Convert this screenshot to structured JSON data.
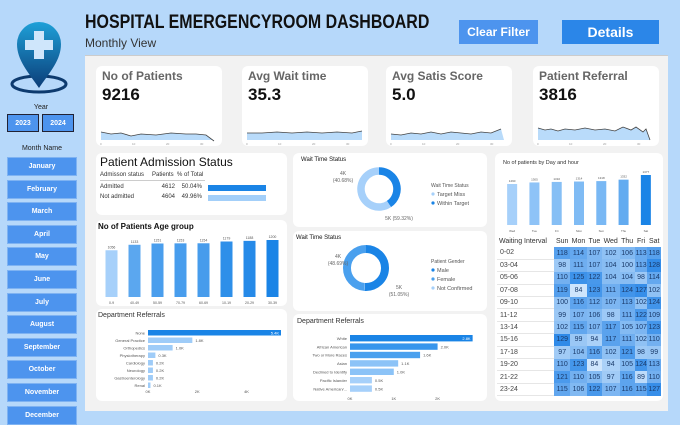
{
  "header": {
    "title": "HOSPITAL EMERGENCYROOM DASHBOARD",
    "subtitle": "Monthly View",
    "clear_filter": "Clear Filter",
    "details": "Details"
  },
  "sidebar": {
    "year_label": "Year",
    "years": [
      "2023",
      "2024"
    ],
    "month_label": "Month Name",
    "months": [
      "January",
      "February",
      "March",
      "April",
      "May",
      "June",
      "July",
      "August",
      "September",
      "October",
      "November",
      "December"
    ]
  },
  "kpis": [
    {
      "title": "No of Patients",
      "value": "9216"
    },
    {
      "title": "Avg Wait time",
      "value": "35.3"
    },
    {
      "title": "Avg Satis Score",
      "value": "5.0"
    },
    {
      "title": "Patient Referral",
      "value": "3816"
    }
  ],
  "admission": {
    "title": "Patient Admission Status",
    "headers": [
      "Admisson status",
      "Patients",
      "% of Total"
    ],
    "rows": [
      {
        "status": "Admitted",
        "patients": "4612",
        "pct": "50.04%",
        "fraction": 0.5004
      },
      {
        "status": "Not admitted",
        "patients": "4604",
        "pct": "49.96%",
        "fraction": 0.4996
      }
    ]
  },
  "colors": {
    "dark": "#1a84e6",
    "mid": "#4aa0ee",
    "light": "#a3cff9",
    "sidebar_btn": "#4d94ee"
  },
  "chart_data": [
    {
      "type": "bar",
      "title": "No of Patients Age group",
      "categories": [
        "0-9",
        "40-49",
        "50-59",
        "70-79",
        "60-69",
        "10-19",
        "20-29",
        "30-39"
      ],
      "values": [
        1056,
        1133,
        1151,
        1153,
        1154,
        1179,
        1188,
        1200
      ],
      "data_labels": [
        "1056",
        "1133",
        "1151",
        "1153",
        "1154",
        "1179",
        "1188",
        "1200"
      ]
    },
    {
      "type": "bar",
      "orientation": "horizontal",
      "title": "Department Referrals",
      "categories": [
        "None",
        "General Practice",
        "Orthopedics",
        "Physiotherapy",
        "Cardiology",
        "Neurology",
        "Gastroenterology",
        "Renal"
      ],
      "values": [
        5.4,
        1.8,
        1.0,
        0.3,
        0.2,
        0.2,
        0.2,
        0.1
      ],
      "data_labels": [
        "5.4K",
        "1.8K",
        "1.0K",
        "0.3K",
        "0.2K",
        "0.2K",
        "0.2K",
        "0.1K"
      ],
      "xticks": [
        "0K",
        "2K",
        "4K"
      ],
      "xlim": [
        0,
        5.4
      ]
    },
    {
      "type": "pie",
      "donut": true,
      "title": "Wait Time Status",
      "legend_title": "Wait Time Status",
      "legend": [
        "Target Miss",
        "Within Target"
      ],
      "slices": [
        {
          "name": "Within Target",
          "value": 40.68,
          "label": "4K\n(40.68%)"
        },
        {
          "name": "Target Miss",
          "value": 59.32,
          "label": "5K (59.32%)"
        }
      ]
    },
    {
      "type": "pie",
      "donut": true,
      "title": "Wait Time Status",
      "legend_title": "Patient Gender",
      "legend": [
        "Male",
        "Female",
        "Not Confirmed"
      ],
      "slices": [
        {
          "name": "Male",
          "value": 51.05,
          "label": "5K\n(51.05%)"
        },
        {
          "name": "Not Confirmed",
          "value": 0.26,
          "label": ""
        },
        {
          "name": "Female",
          "value": 48.69,
          "label": "4K\n(48.69%)"
        }
      ]
    },
    {
      "type": "bar",
      "orientation": "horizontal",
      "title": "Department Referrals",
      "categories": [
        "White",
        "African American",
        "Two or More Races",
        "Asian",
        "Declined to Identify",
        "Pacific Islander",
        "Native American/..."
      ],
      "values": [
        2.8,
        2.0,
        1.6,
        1.1,
        1.0,
        0.5,
        0.5
      ],
      "data_labels": [
        "2.8K",
        "2.0K",
        "1.6K",
        "1.1K",
        "1.0K",
        "0.5K",
        "0.5K"
      ],
      "xticks": [
        "0K",
        "1K",
        "2K"
      ],
      "xlim": [
        0,
        2.9
      ]
    },
    {
      "type": "bar",
      "title": "No of patients by Day and hour",
      "categories": [
        "Wed",
        "Tue",
        "Fri",
        "Mon",
        "Sun",
        "Thu",
        "Sat"
      ],
      "values": [
        1290,
        1305,
        1310,
        1314,
        1318,
        1332,
        1377
      ],
      "data_labels": [
        "1290",
        "1305",
        "1310",
        "1314",
        "1318",
        "1332",
        "1377"
      ]
    },
    {
      "type": "heatmap",
      "headers": [
        "Waiting Interval",
        "Sun",
        "Mon",
        "Tue",
        "Wed",
        "Thu",
        "Fri",
        "Sat"
      ],
      "rows": [
        [
          "0-02",
          118,
          114,
          107,
          102,
          106,
          113,
          118
        ],
        [
          "03-04",
          98,
          111,
          107,
          104,
          100,
          113,
          128
        ],
        [
          "05-06",
          110,
          125,
          122,
          104,
          104,
          98,
          114
        ],
        [
          "07-08",
          119,
          84,
          123,
          111,
          124,
          127,
          102
        ],
        [
          "09-10",
          100,
          116,
          112,
          107,
          113,
          102,
          124
        ],
        [
          "11-12",
          99,
          107,
          106,
          98,
          111,
          122,
          109
        ],
        [
          "13-14",
          102,
          115,
          107,
          117,
          105,
          107,
          123
        ],
        [
          "15-16",
          129,
          99,
          94,
          117,
          111,
          102,
          110
        ],
        [
          "17-18",
          97,
          104,
          116,
          102,
          121,
          98,
          99
        ],
        [
          "19-20",
          110,
          123,
          84,
          94,
          105,
          124,
          113
        ],
        [
          "21-22",
          121,
          110,
          105,
          97,
          116,
          89,
          110
        ],
        [
          "23-24",
          115,
          106,
          122,
          107,
          116,
          115,
          127
        ]
      ]
    }
  ]
}
